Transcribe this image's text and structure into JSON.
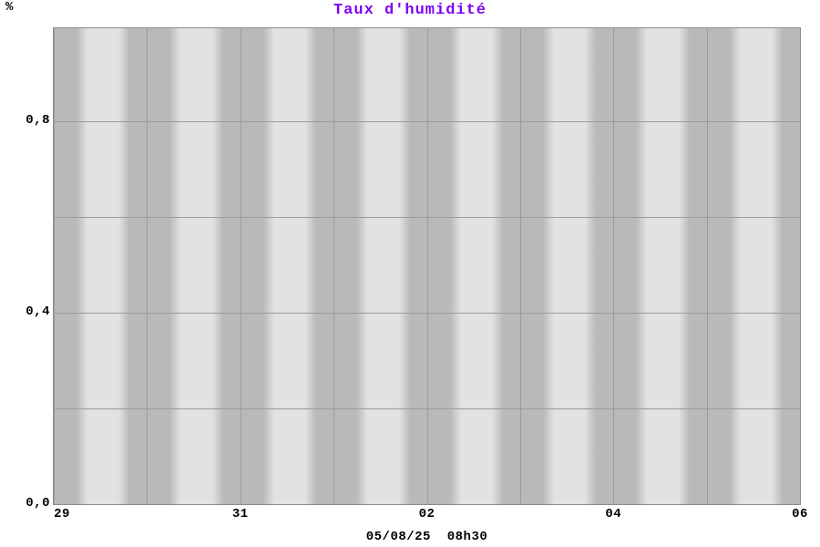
{
  "title": {
    "text": "Taux d'humidité"
  },
  "y_axis": {
    "unit_label": "%"
  },
  "x_axis": {
    "caption": "05/08/25  08h30"
  },
  "chart_data": {
    "type": "line",
    "title": "Taux d'humidité",
    "ylabel": "%",
    "ylim": [
      0,
      1.0
    ],
    "y_ticks": [
      {
        "value": 0.0,
        "label": "0,0"
      },
      {
        "value": 0.4,
        "label": "0,4"
      },
      {
        "value": 0.8,
        "label": "0,8"
      }
    ],
    "y_gridlines": [
      0.2,
      0.4,
      0.6,
      0.8
    ],
    "x_range_days": 8,
    "x_ticks": [
      {
        "day": 0,
        "label": "29"
      },
      {
        "day": 2,
        "label": "31"
      },
      {
        "day": 4,
        "label": "02"
      },
      {
        "day": 6,
        "label": "04"
      },
      {
        "day": 8,
        "label": "06"
      }
    ],
    "x_caption": "05/08/25  08h30",
    "series": [],
    "note": "No data curve is visible; plot shows only alternating night (dark) / day (light) background bands, one cycle per daily gridline, grid every 0.2 on the y axis.",
    "colors": {
      "title": "#7d00f2",
      "band_dark": "#b9b9b9",
      "band_light": "#e2e2e2",
      "gridline": "#9b9b9b",
      "plot_border": "#8c8c8c",
      "label_text": "#000000"
    }
  }
}
